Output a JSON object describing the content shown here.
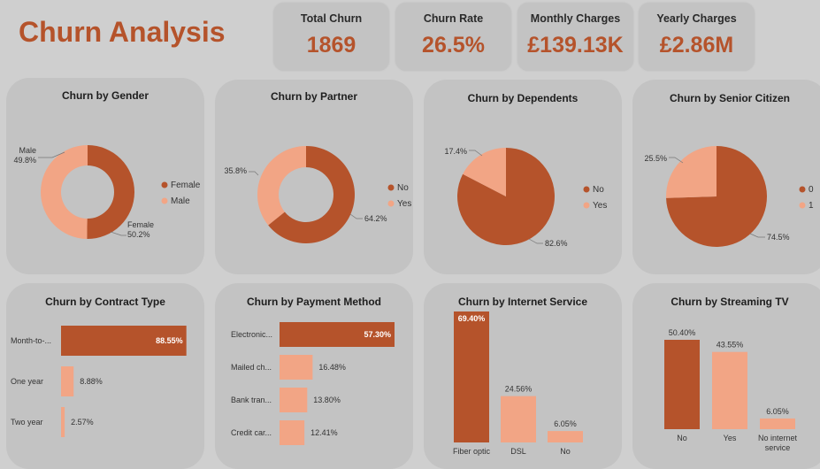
{
  "page": {
    "title": "Churn Analysis"
  },
  "kpis": [
    {
      "label": "Total Churn",
      "value": "1869"
    },
    {
      "label": "Churn Rate",
      "value": "26.5%"
    },
    {
      "label": "Monthly Charges",
      "value": "£139.13K"
    },
    {
      "label": "Yearly Charges",
      "value": "£2.86M"
    }
  ],
  "colors": {
    "dark": "#b5532b",
    "light": "#f2a585",
    "accent": "#b5532b"
  },
  "chart_data": [
    {
      "id": "gender",
      "type": "pie",
      "donut": true,
      "title": "Churn by Gender",
      "slices": [
        {
          "label": "Female",
          "value": 50.2,
          "display": "50.2%"
        },
        {
          "label": "Male",
          "value": 49.8,
          "display": "49.8%"
        }
      ],
      "legend": [
        "Female",
        "Male"
      ],
      "legend_position": "right"
    },
    {
      "id": "partner",
      "type": "pie",
      "donut": true,
      "title": "Churn by Partner",
      "slices": [
        {
          "label": "No",
          "value": 64.2,
          "display": "64.2%"
        },
        {
          "label": "Yes",
          "value": 35.8,
          "display": "35.8%"
        }
      ],
      "legend": [
        "No",
        "Yes"
      ],
      "legend_position": "right"
    },
    {
      "id": "dependents",
      "type": "pie",
      "donut": false,
      "title": "Churn by Dependents",
      "slices": [
        {
          "label": "No",
          "value": 82.6,
          "display": "82.6%"
        },
        {
          "label": "Yes",
          "value": 17.4,
          "display": "17.4%"
        }
      ],
      "legend": [
        "No",
        "Yes"
      ],
      "legend_position": "right"
    },
    {
      "id": "senior",
      "type": "pie",
      "donut": false,
      "title": "Churn by Senior Citizen",
      "slices": [
        {
          "label": "0",
          "value": 74.5,
          "display": "74.5%"
        },
        {
          "label": "1",
          "value": 25.5,
          "display": "25.5%"
        }
      ],
      "legend": [
        "0",
        "1"
      ],
      "legend_position": "right"
    },
    {
      "id": "contract",
      "type": "bar",
      "orientation": "horizontal",
      "title": "Churn by Contract Type",
      "categories": [
        "Month-to-...",
        "One year",
        "Two year"
      ],
      "values": [
        88.55,
        8.88,
        2.57
      ],
      "labels": [
        "88.55%",
        "8.88%",
        "2.57%"
      ],
      "xlim": [
        0,
        100
      ]
    },
    {
      "id": "payment",
      "type": "bar",
      "orientation": "horizontal",
      "title": "Churn by Payment Method",
      "categories": [
        "Electronic...",
        "Mailed ch...",
        "Bank tran...",
        "Credit car..."
      ],
      "values": [
        57.3,
        16.48,
        13.8,
        12.41
      ],
      "labels": [
        "57.30%",
        "16.48%",
        "13.80%",
        "12.41%"
      ],
      "xlim": [
        0,
        57.3
      ]
    },
    {
      "id": "internet",
      "type": "bar",
      "orientation": "vertical",
      "title": "Churn by Internet Service",
      "categories": [
        "Fiber optic",
        "DSL",
        "No"
      ],
      "values": [
        69.4,
        24.56,
        6.05
      ],
      "labels": [
        "69.40%",
        "24.56%",
        "6.05%"
      ],
      "ylim": [
        0,
        69.4
      ]
    },
    {
      "id": "streaming",
      "type": "bar",
      "orientation": "vertical",
      "title": "Churn by Streaming TV",
      "categories": [
        "No",
        "Yes",
        "No internet service"
      ],
      "category_lines": [
        [
          "No"
        ],
        [
          "Yes"
        ],
        [
          "No internet",
          "service"
        ]
      ],
      "values": [
        50.4,
        43.55,
        6.05
      ],
      "labels": [
        "50.40%",
        "43.55%",
        "6.05%"
      ],
      "ylim": [
        0,
        50.4
      ]
    }
  ]
}
